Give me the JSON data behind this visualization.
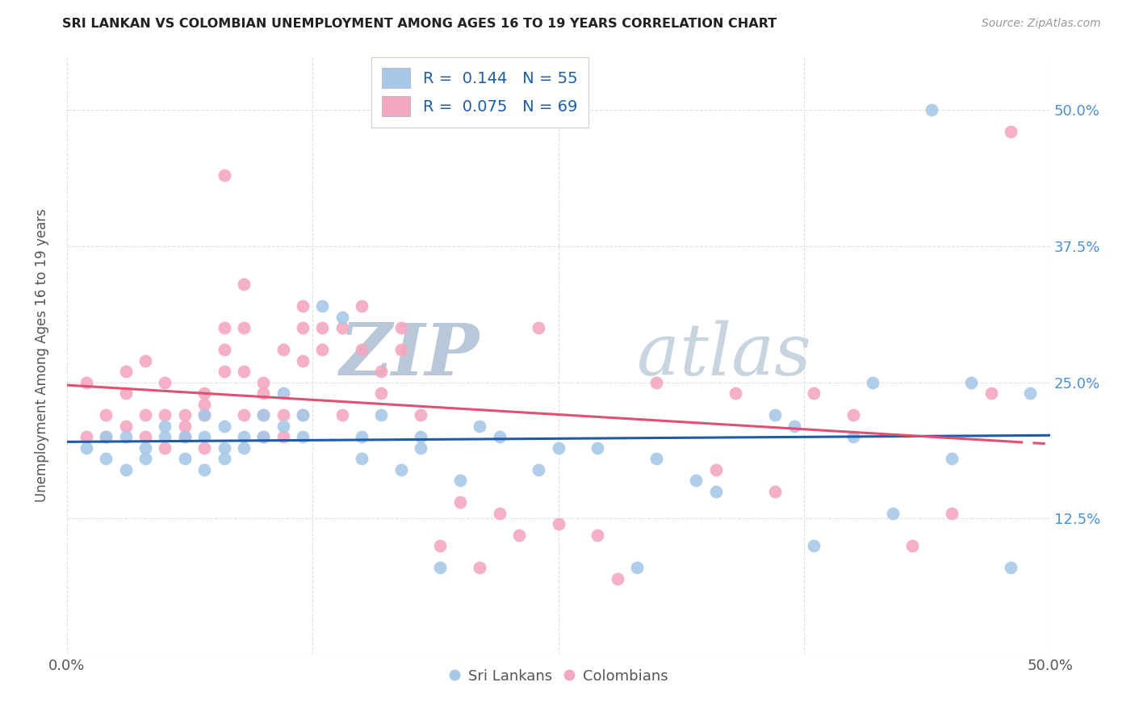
{
  "title": "SRI LANKAN VS COLOMBIAN UNEMPLOYMENT AMONG AGES 16 TO 19 YEARS CORRELATION CHART",
  "source": "Source: ZipAtlas.com",
  "ylabel": "Unemployment Among Ages 16 to 19 years",
  "xlim": [
    0.0,
    0.5
  ],
  "ylim": [
    0.0,
    0.55
  ],
  "xticks": [
    0.0,
    0.125,
    0.25,
    0.375,
    0.5
  ],
  "xticklabels": [
    "0.0%",
    "",
    "",
    "",
    "50.0%"
  ],
  "yticks": [
    0.0,
    0.125,
    0.25,
    0.375,
    0.5
  ],
  "yticklabels": [
    "",
    "12.5%",
    "25.0%",
    "37.5%",
    "50.0%"
  ],
  "sri_lankan_color": "#a8c8e8",
  "colombian_color": "#f4a8c0",
  "sri_lankan_line_color": "#1f5ba8",
  "colombian_line_color": "#e05070",
  "sri_lankan_R": 0.144,
  "sri_lankan_N": 55,
  "colombian_R": 0.075,
  "colombian_N": 69,
  "sri_lankan_x": [
    0.01,
    0.02,
    0.02,
    0.03,
    0.03,
    0.04,
    0.04,
    0.05,
    0.05,
    0.06,
    0.06,
    0.07,
    0.07,
    0.07,
    0.08,
    0.08,
    0.08,
    0.09,
    0.09,
    0.1,
    0.1,
    0.11,
    0.11,
    0.12,
    0.12,
    0.13,
    0.14,
    0.15,
    0.15,
    0.16,
    0.17,
    0.18,
    0.18,
    0.19,
    0.2,
    0.21,
    0.22,
    0.24,
    0.25,
    0.27,
    0.29,
    0.3,
    0.32,
    0.33,
    0.36,
    0.37,
    0.38,
    0.4,
    0.41,
    0.42,
    0.44,
    0.45,
    0.46,
    0.48,
    0.49
  ],
  "sri_lankan_y": [
    0.19,
    0.18,
    0.2,
    0.17,
    0.2,
    0.19,
    0.18,
    0.2,
    0.21,
    0.18,
    0.2,
    0.17,
    0.2,
    0.22,
    0.19,
    0.21,
    0.18,
    0.2,
    0.19,
    0.22,
    0.2,
    0.24,
    0.21,
    0.22,
    0.2,
    0.32,
    0.31,
    0.2,
    0.18,
    0.22,
    0.17,
    0.2,
    0.19,
    0.08,
    0.16,
    0.21,
    0.2,
    0.17,
    0.19,
    0.19,
    0.08,
    0.18,
    0.16,
    0.15,
    0.22,
    0.21,
    0.1,
    0.2,
    0.25,
    0.13,
    0.5,
    0.18,
    0.25,
    0.08,
    0.24
  ],
  "colombian_x": [
    0.01,
    0.01,
    0.02,
    0.02,
    0.03,
    0.03,
    0.03,
    0.04,
    0.04,
    0.04,
    0.05,
    0.05,
    0.05,
    0.06,
    0.06,
    0.06,
    0.07,
    0.07,
    0.07,
    0.07,
    0.08,
    0.08,
    0.08,
    0.08,
    0.09,
    0.09,
    0.09,
    0.09,
    0.1,
    0.1,
    0.1,
    0.1,
    0.11,
    0.11,
    0.11,
    0.12,
    0.12,
    0.12,
    0.12,
    0.13,
    0.13,
    0.14,
    0.14,
    0.15,
    0.15,
    0.16,
    0.16,
    0.17,
    0.17,
    0.18,
    0.19,
    0.2,
    0.21,
    0.22,
    0.23,
    0.24,
    0.25,
    0.27,
    0.28,
    0.3,
    0.33,
    0.34,
    0.36,
    0.38,
    0.4,
    0.43,
    0.45,
    0.47,
    0.48
  ],
  "colombian_y": [
    0.2,
    0.25,
    0.22,
    0.2,
    0.21,
    0.24,
    0.26,
    0.27,
    0.22,
    0.2,
    0.22,
    0.25,
    0.19,
    0.2,
    0.22,
    0.21,
    0.22,
    0.19,
    0.24,
    0.23,
    0.44,
    0.3,
    0.28,
    0.26,
    0.34,
    0.22,
    0.26,
    0.3,
    0.25,
    0.24,
    0.22,
    0.2,
    0.28,
    0.22,
    0.2,
    0.32,
    0.3,
    0.27,
    0.22,
    0.3,
    0.28,
    0.3,
    0.22,
    0.32,
    0.28,
    0.26,
    0.24,
    0.3,
    0.28,
    0.22,
    0.1,
    0.14,
    0.08,
    0.13,
    0.11,
    0.3,
    0.12,
    0.11,
    0.07,
    0.25,
    0.17,
    0.24,
    0.15,
    0.24,
    0.22,
    0.1,
    0.13,
    0.24,
    0.48
  ],
  "background_color": "#ffffff",
  "grid_color": "#e0e0e8",
  "watermark_zip": "ZIP",
  "watermark_atlas": "atlas",
  "watermark_color": "#ccd8e8"
}
